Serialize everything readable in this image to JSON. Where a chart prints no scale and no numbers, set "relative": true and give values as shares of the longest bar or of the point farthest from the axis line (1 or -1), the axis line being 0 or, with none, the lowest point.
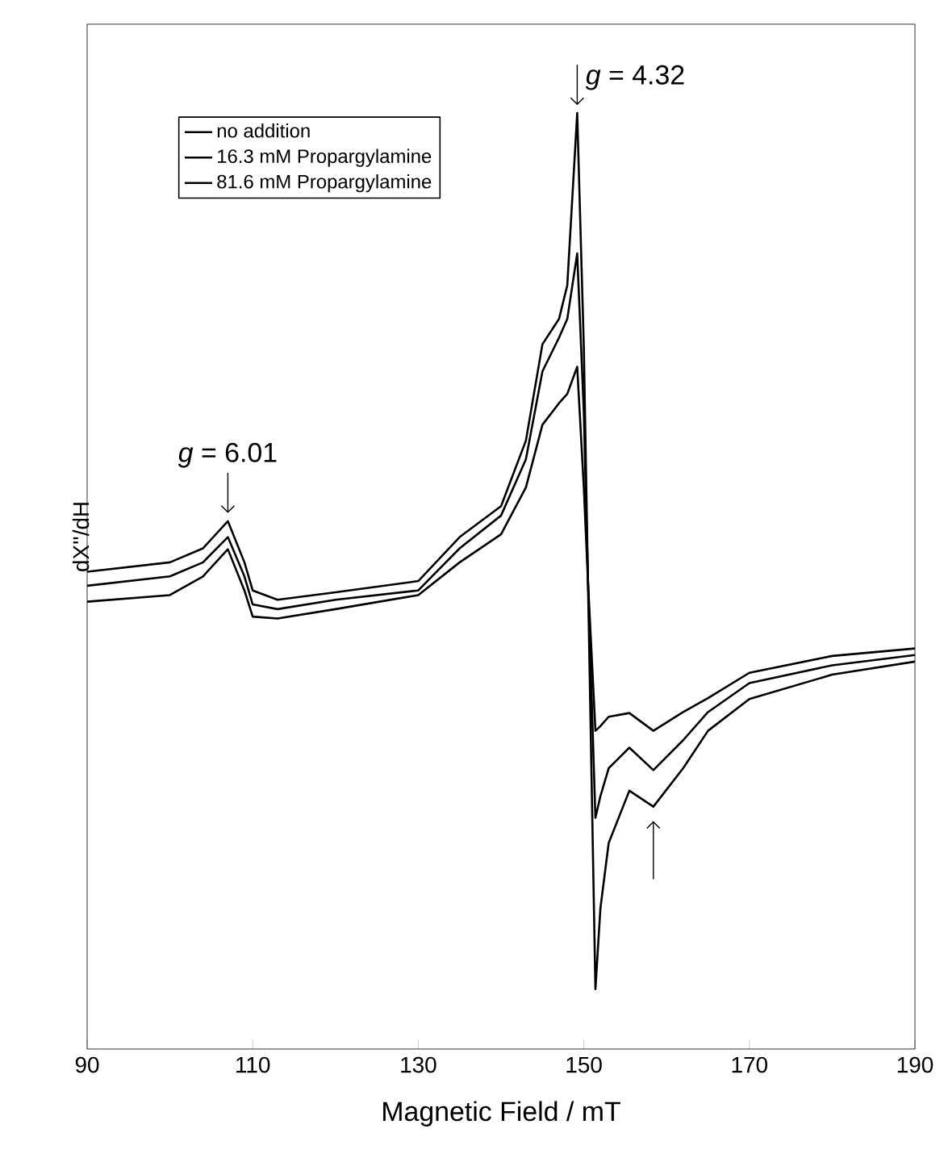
{
  "chart_data": {
    "type": "line",
    "xlabel": "Magnetic Field / mT",
    "ylabel": "dX''/dH",
    "relative": true,
    "legend": "top left",
    "xlim": [
      90,
      190
    ],
    "xticks": [
      90,
      110,
      130,
      150,
      170,
      190
    ],
    "annotations": [
      {
        "text": "*g* = 6.01",
        "x": 107,
        "y": 0.564
      },
      {
        "text": "*g* = 4.32",
        "x": 149.2,
        "y": 1.0
      }
    ],
    "series": [
      {
        "name": "no addition",
        "color": "#000000",
        "x": [
          90,
          100,
          104,
          107,
          109,
          110,
          113,
          120,
          130,
          135,
          140,
          143,
          145,
          147,
          148,
          149.2,
          150,
          150.5,
          151.4,
          152,
          153,
          155.5,
          158.4,
          162,
          165,
          170,
          180,
          190
        ],
        "values": [
          0.51,
          0.52,
          0.535,
          0.564,
          0.52,
          0.49,
          0.48,
          0.488,
          0.5,
          0.547,
          0.58,
          0.65,
          0.753,
          0.78,
          0.816,
          1.0,
          0.75,
          0.5,
          0.064,
          0.15,
          0.22,
          0.276,
          0.259,
          0.3,
          0.34,
          0.374,
          0.4,
          0.414
        ]
      },
      {
        "name": "16.3 mM Propargylamine",
        "color": "#000000",
        "x": [
          90,
          100,
          104,
          107,
          109,
          110,
          113,
          120,
          130,
          135,
          140,
          143,
          145,
          147,
          148,
          149.2,
          150,
          150.5,
          151.4,
          152,
          153,
          155.5,
          158.4,
          162,
          165,
          170,
          180,
          190
        ],
        "values": [
          0.495,
          0.505,
          0.52,
          0.547,
          0.505,
          0.475,
          0.47,
          0.48,
          0.49,
          0.535,
          0.57,
          0.63,
          0.724,
          0.76,
          0.78,
          0.85,
          0.68,
          0.5,
          0.247,
          0.27,
          0.3,
          0.322,
          0.298,
          0.33,
          0.36,
          0.391,
          0.41,
          0.421
        ]
      },
      {
        "name": "81.6 mM Propargylamine",
        "color": "#000000",
        "x": [
          90,
          100,
          104,
          107,
          109,
          110,
          113,
          120,
          130,
          135,
          140,
          143,
          145,
          147,
          148,
          149.2,
          150,
          150.5,
          151.4,
          152,
          153,
          155.5,
          158.4,
          162,
          165,
          170,
          180,
          190
        ],
        "values": [
          0.478,
          0.485,
          0.505,
          0.534,
          0.49,
          0.462,
          0.46,
          0.47,
          0.485,
          0.52,
          0.55,
          0.6,
          0.667,
          0.69,
          0.7,
          0.729,
          0.6,
          0.5,
          0.34,
          0.345,
          0.355,
          0.359,
          0.34,
          0.36,
          0.375,
          0.402,
          0.42,
          0.428
        ]
      }
    ]
  }
}
